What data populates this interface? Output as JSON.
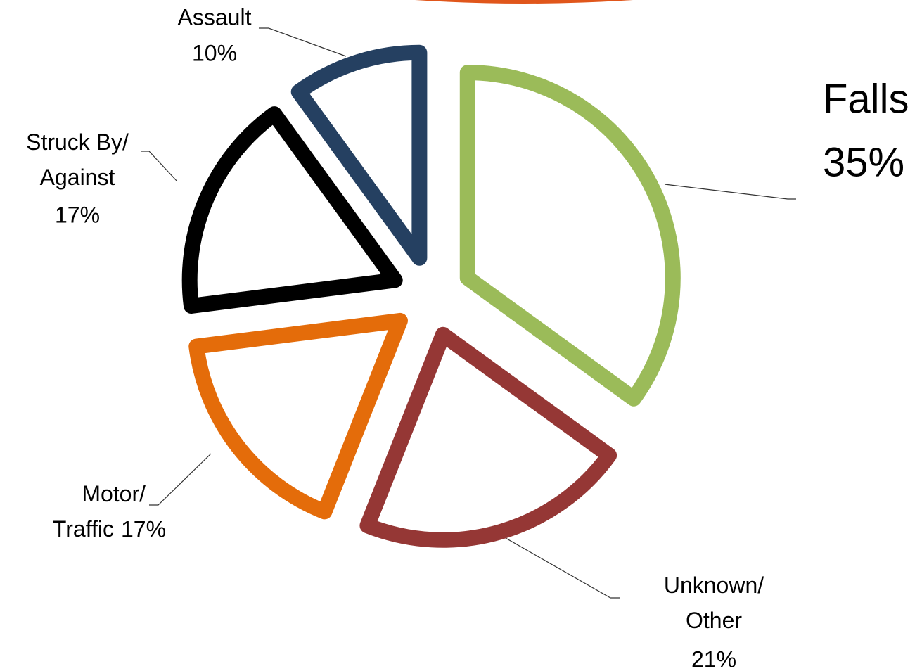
{
  "chart_data": {
    "type": "pie",
    "categories": [
      "Falls",
      "Unknown/ Other",
      "Motor/ Traffic",
      "Struck By/ Against",
      "Assault"
    ],
    "values": [
      35,
      21,
      17,
      17,
      10
    ],
    "value_labels": [
      "35%",
      "21%",
      "17%",
      "17%",
      "10%"
    ],
    "colors": [
      "#9bbb59",
      "#953735",
      "#e46c0a",
      "#000000",
      "#254061"
    ]
  }
}
